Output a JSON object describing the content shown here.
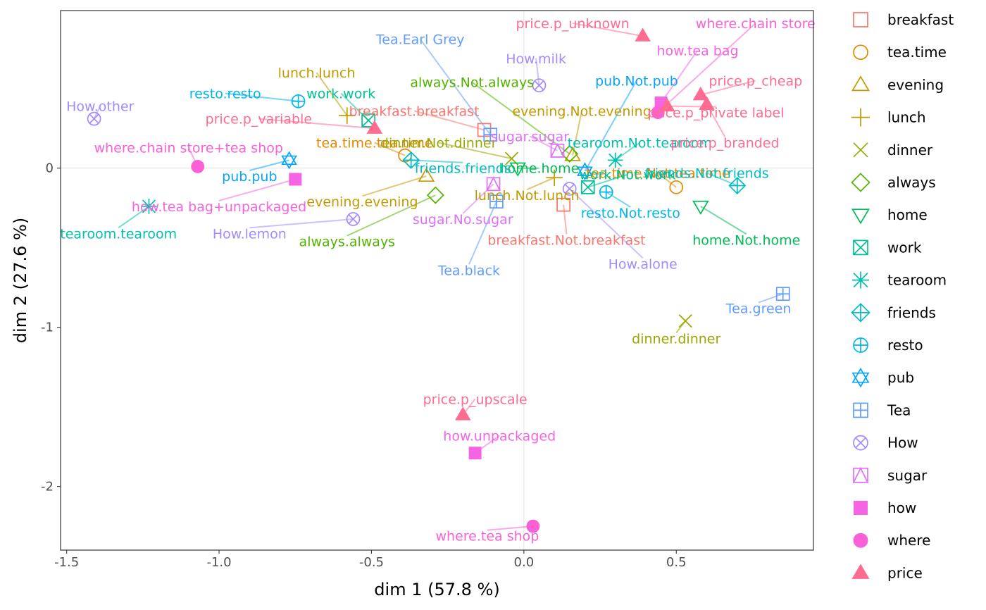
{
  "chart_data": {
    "type": "scatter",
    "xlabel": "dim 1 (57.8 %)",
    "ylabel": "dim 2 (27.6 %)",
    "xlim": [
      -1.52,
      0.95
    ],
    "ylim": [
      -2.4,
      0.99
    ],
    "x_ticks": [
      {
        "value": -1.5,
        "label": "-1.5"
      },
      {
        "value": -1.0,
        "label": "-1.0"
      },
      {
        "value": -0.5,
        "label": "-0.5"
      },
      {
        "value": 0.0,
        "label": "0.0"
      },
      {
        "value": 0.5,
        "label": "0.5"
      }
    ],
    "y_ticks": [
      {
        "value": 0,
        "label": "0"
      },
      {
        "value": -1,
        "label": "-1"
      },
      {
        "value": -2,
        "label": "-2"
      }
    ],
    "reference_lines": {
      "x": 0,
      "y": 0
    },
    "legend_position": "right",
    "groups": [
      {
        "name": "breakfast",
        "shape": "square-open",
        "color": "#F8766D"
      },
      {
        "name": "tea.time",
        "shape": "circle-open",
        "color": "#E38900"
      },
      {
        "name": "evening",
        "shape": "triangle-open",
        "color": "#C49A00"
      },
      {
        "name": "lunch",
        "shape": "plus",
        "color": "#C09B00"
      },
      {
        "name": "dinner",
        "shape": "cross",
        "color": "#99A800"
      },
      {
        "name": "always",
        "shape": "diamond-open",
        "color": "#53B400"
      },
      {
        "name": "home",
        "shape": "triangle-down-open",
        "color": "#00BC56"
      },
      {
        "name": "work",
        "shape": "square-cross",
        "color": "#00C094"
      },
      {
        "name": "tearoom",
        "shape": "asterisk",
        "color": "#00BFAF"
      },
      {
        "name": "friends",
        "shape": "diamond-plus",
        "color": "#00BCC4"
      },
      {
        "name": "resto",
        "shape": "circle-plus",
        "color": "#00B6EB"
      },
      {
        "name": "pub",
        "shape": "star-of-david",
        "color": "#06A4FF"
      },
      {
        "name": "Tea",
        "shape": "square-plus",
        "color": "#619CFF"
      },
      {
        "name": "How",
        "shape": "circle-cross",
        "color": "#A58AFF"
      },
      {
        "name": "sugar",
        "shape": "square-triangle",
        "color": "#DF70F8"
      },
      {
        "name": "how",
        "shape": "square-filled",
        "color": "#F564E3"
      },
      {
        "name": "where",
        "shape": "circle-filled",
        "color": "#FB61D7"
      },
      {
        "name": "price",
        "shape": "triangle-filled",
        "color": "#FF6C91"
      }
    ],
    "points": [
      {
        "label": "breakfast.breakfast",
        "group": "breakfast",
        "x": -0.13,
        "y": 0.24,
        "lx": -0.36,
        "ly": 0.36
      },
      {
        "label": "breakfast.Not.breakfast",
        "group": "breakfast",
        "x": 0.13,
        "y": -0.23,
        "lx": 0.14,
        "ly": -0.45
      },
      {
        "label": "tea.time.tea.time",
        "group": "tea.time",
        "x": -0.39,
        "y": 0.08,
        "lx": -0.49,
        "ly": 0.16
      },
      {
        "label": "tea.time.Not.tea.time",
        "group": "tea.time",
        "x": 0.5,
        "y": -0.12,
        "lx": 0.44,
        "ly": -0.03
      },
      {
        "label": "evening.evening",
        "group": "evening",
        "x": -0.32,
        "y": -0.05,
        "lx": -0.53,
        "ly": -0.21
      },
      {
        "label": "evening.Not.evening",
        "group": "evening",
        "x": 0.16,
        "y": 0.08,
        "lx": 0.19,
        "ly": 0.36
      },
      {
        "label": "lunch.lunch",
        "group": "lunch",
        "x": -0.58,
        "y": 0.33,
        "lx": -0.68,
        "ly": 0.6
      },
      {
        "label": "lunch.Not.lunch",
        "group": "lunch",
        "x": 0.1,
        "y": -0.06,
        "lx": 0.01,
        "ly": -0.17
      },
      {
        "label": "dinner.dinner",
        "group": "dinner",
        "x": 0.53,
        "y": -0.96,
        "lx": 0.5,
        "ly": -1.07
      },
      {
        "label": "dinner.Not.dinner",
        "group": "dinner",
        "x": -0.04,
        "y": 0.06,
        "lx": -0.28,
        "ly": 0.16
      },
      {
        "label": "always.always",
        "group": "always",
        "x": -0.29,
        "y": -0.17,
        "lx": -0.58,
        "ly": -0.46
      },
      {
        "label": "always.Not.always",
        "group": "always",
        "x": 0.15,
        "y": 0.09,
        "lx": -0.17,
        "ly": 0.54
      },
      {
        "label": "home.home",
        "group": "home",
        "x": -0.02,
        "y": 0.0,
        "lx": 0.05,
        "ly": 0.0
      },
      {
        "label": "home.Not.home",
        "group": "home",
        "x": 0.58,
        "y": -0.24,
        "lx": 0.73,
        "ly": -0.45
      },
      {
        "label": "work.work",
        "group": "work",
        "x": -0.51,
        "y": 0.3,
        "lx": -0.6,
        "ly": 0.47
      },
      {
        "label": "work.Not.work",
        "group": "work",
        "x": 0.21,
        "y": -0.12,
        "lx": 0.34,
        "ly": -0.04
      },
      {
        "label": "tearoom.tearoom",
        "group": "tearoom",
        "x": -1.23,
        "y": -0.24,
        "lx": -1.33,
        "ly": -0.41
      },
      {
        "label": "tearoom.Not.tearoom",
        "group": "tearoom",
        "x": 0.3,
        "y": 0.05,
        "lx": 0.38,
        "ly": 0.16
      },
      {
        "label": "friends.friends",
        "group": "friends",
        "x": -0.37,
        "y": 0.05,
        "lx": -0.2,
        "ly": -0.0
      },
      {
        "label": "friends.Not.friends",
        "group": "friends",
        "x": 0.7,
        "y": -0.11,
        "lx": 0.6,
        "ly": -0.03
      },
      {
        "label": "resto.resto",
        "group": "resto",
        "x": -0.74,
        "y": 0.42,
        "lx": -0.98,
        "ly": 0.47
      },
      {
        "label": "resto.Not.resto",
        "group": "resto",
        "x": 0.27,
        "y": -0.15,
        "lx": 0.35,
        "ly": -0.28
      },
      {
        "label": "pub.pub",
        "group": "pub",
        "x": -0.77,
        "y": 0.05,
        "lx": -0.9,
        "ly": -0.05
      },
      {
        "label": "pub.Not.pub",
        "group": "pub",
        "x": 0.2,
        "y": -0.02,
        "lx": 0.37,
        "ly": 0.55
      },
      {
        "label": "Tea.Earl Grey",
        "group": "Tea",
        "x": -0.11,
        "y": 0.21,
        "lx": -0.34,
        "ly": 0.81
      },
      {
        "label": "Tea.black",
        "group": "Tea",
        "x": -0.09,
        "y": -0.21,
        "lx": -0.18,
        "ly": -0.64
      },
      {
        "label": "Tea.green",
        "group": "Tea",
        "x": 0.85,
        "y": -0.79,
        "lx": 0.77,
        "ly": -0.88
      },
      {
        "label": "How.other",
        "group": "How",
        "x": -1.41,
        "y": 0.31,
        "lx": -1.39,
        "ly": 0.39
      },
      {
        "label": "How.lemon",
        "group": "How",
        "x": -0.56,
        "y": -0.32,
        "lx": -0.9,
        "ly": -0.41
      },
      {
        "label": "How.milk",
        "group": "How",
        "x": 0.05,
        "y": 0.52,
        "lx": 0.04,
        "ly": 0.69
      },
      {
        "label": "How.alone",
        "group": "How",
        "x": 0.15,
        "y": -0.13,
        "lx": 0.39,
        "ly": -0.6
      },
      {
        "label": "sugar.sugar",
        "group": "sugar",
        "x": 0.11,
        "y": 0.11,
        "lx": 0.02,
        "ly": 0.2
      },
      {
        "label": "sugar.No.sugar",
        "group": "sugar",
        "x": -0.1,
        "y": -0.1,
        "lx": -0.2,
        "ly": -0.32
      },
      {
        "label": "how.tea bag+unpackaged",
        "group": "how",
        "x": -0.75,
        "y": -0.07,
        "lx": -1.0,
        "ly": -0.24
      },
      {
        "label": "how.tea bag",
        "group": "how",
        "x": 0.45,
        "y": 0.41,
        "lx": 0.57,
        "ly": 0.74
      },
      {
        "label": "how.unpackaged",
        "group": "how",
        "x": -0.16,
        "y": -1.79,
        "lx": -0.08,
        "ly": -1.68
      },
      {
        "label": "where.chain store+tea shop",
        "group": "where",
        "x": -1.07,
        "y": 0.01,
        "lx": -1.1,
        "ly": 0.13
      },
      {
        "label": "where.chain store",
        "group": "where",
        "x": 0.44,
        "y": 0.35,
        "lx": 0.76,
        "ly": 0.91
      },
      {
        "label": "where.tea shop",
        "group": "where",
        "x": 0.03,
        "y": -2.25,
        "lx": -0.12,
        "ly": -2.31
      },
      {
        "label": "price.p_unknown",
        "group": "price",
        "x": 0.39,
        "y": 0.83,
        "lx": 0.16,
        "ly": 0.91
      },
      {
        "label": "price.p_variable",
        "group": "price",
        "x": -0.49,
        "y": 0.25,
        "lx": -0.87,
        "ly": 0.31
      },
      {
        "label": "price.p_cheap",
        "group": "price",
        "x": 0.58,
        "y": 0.46,
        "lx": 0.76,
        "ly": 0.55
      },
      {
        "label": "price.p_private label",
        "group": "price",
        "x": 0.47,
        "y": 0.39,
        "lx": 0.63,
        "ly": 0.35
      },
      {
        "label": "price.p_branded",
        "group": "price",
        "x": 0.6,
        "y": 0.4,
        "lx": 0.66,
        "ly": 0.16
      },
      {
        "label": "price.p_upscale",
        "group": "price",
        "x": -0.2,
        "y": -1.55,
        "lx": -0.16,
        "ly": -1.45
      }
    ]
  }
}
